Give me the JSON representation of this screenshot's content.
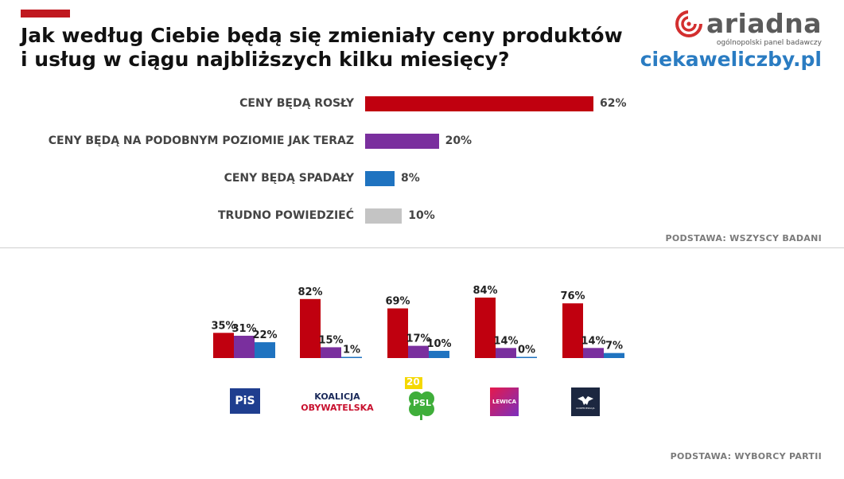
{
  "header": {
    "title_line1": "Jak według Ciebie będą się zmieniały ceny produktów",
    "title_line2": "i usług w ciągu najbliższych kilku miesięcy?",
    "brand": "ariadna",
    "brand_sub": "ogólnopolski panel badawczy",
    "site": "ciekaweliczby.pl"
  },
  "colors": {
    "accent": "#c0181f",
    "rise": "#c0000f",
    "same": "#7a2f9e",
    "fall": "#1f73c0",
    "hard": "#c4c4c4",
    "brand_site": "#2a7cc2"
  },
  "chart_data": [
    {
      "type": "bar",
      "orientation": "horizontal",
      "categories": [
        "CENY BĘDĄ ROSŁY",
        "CENY BĘDĄ NA PODOBNYM POZIOMIE JAK TERAZ",
        "CENY BĘDĄ SPADAŁY",
        "TRUDNO POWIEDZIEĆ"
      ],
      "values": [
        62,
        20,
        8,
        10
      ],
      "value_labels": [
        "62%",
        "20%",
        "8%",
        "10%"
      ],
      "unit": "%",
      "note": "PODSTAWA: WSZYSCY BADANI"
    },
    {
      "type": "bar",
      "orientation": "vertical",
      "categories": [
        "PiS",
        "Koalicja Obywatelska",
        "PSL",
        "Lewica",
        "Konfederacja"
      ],
      "series": [
        {
          "values": [
            35,
            82,
            69,
            84,
            76
          ],
          "value_labels": [
            "35%",
            "82%",
            "69%",
            "84%",
            "76%"
          ]
        },
        {
          "values": [
            31,
            15,
            17,
            14,
            14
          ],
          "value_labels": [
            "31%",
            "15%",
            "17%",
            "14%",
            "14%"
          ]
        },
        {
          "values": [
            22,
            1,
            10,
            0,
            7
          ],
          "value_labels": [
            "22%",
            "1%",
            "10%",
            "0%",
            "7%"
          ]
        }
      ],
      "unit": "%",
      "note": "PODSTAWA: WYBORCY PARTII"
    }
  ],
  "party_logos": {
    "pis": "PiS",
    "ko_line1": "KOALICJA",
    "ko_line2": "OBYWATELSKA",
    "psl": "PSL",
    "psl_badge": "20",
    "lewica": "LEWICA",
    "konf": "KONFEDERACJA"
  }
}
